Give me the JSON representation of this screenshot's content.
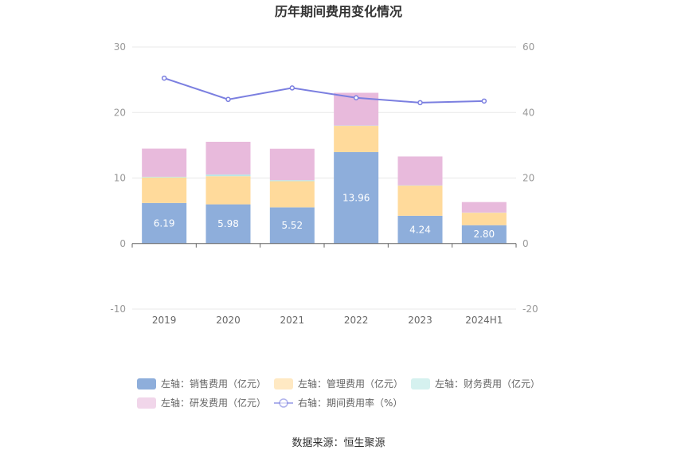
{
  "chart_data": {
    "type": "bar",
    "title": "历年期间费用变化情况",
    "categories": [
      "2019",
      "2020",
      "2021",
      "2022",
      "2023",
      "2024H1"
    ],
    "ylim_left": [
      -10,
      30
    ],
    "yticks_left": [
      -10,
      0,
      10,
      20,
      30
    ],
    "ylim_right": [
      -20,
      60
    ],
    "yticks_right": [
      -20,
      0,
      20,
      40,
      60
    ],
    "stacked": true,
    "series": [
      {
        "name": "左轴：销售费用（亿元）",
        "axis": "left",
        "kind": "bar",
        "color": "#8EAEDB",
        "values": [
          6.19,
          5.98,
          5.52,
          13.96,
          4.24,
          2.8
        ],
        "labels": [
          "6.19",
          "5.98",
          "5.52",
          "13.96",
          "4.24",
          "2.80"
        ]
      },
      {
        "name": "左轴：管理费用（亿元）",
        "axis": "left",
        "kind": "bar",
        "color": "#FFDA9B",
        "values": [
          3.9,
          4.3,
          4.0,
          4.0,
          4.6,
          1.9
        ]
      },
      {
        "name": "左轴：财务费用（亿元）",
        "axis": "left",
        "kind": "bar",
        "color": "#B9E7E5",
        "values": [
          0.1,
          0.25,
          0.15,
          0.05,
          0.05,
          0.03
        ]
      },
      {
        "name": "左轴：研发费用（亿元）",
        "axis": "left",
        "kind": "bar",
        "color": "#E8BADC",
        "values": [
          4.3,
          5.0,
          4.8,
          5.0,
          4.4,
          1.6
        ]
      },
      {
        "name": "右轴：期间费用率（%）",
        "axis": "right",
        "kind": "line",
        "color": "#7B7FE0",
        "values": [
          50.5,
          44.0,
          47.5,
          44.5,
          43.0,
          43.5
        ]
      }
    ],
    "source": "数据来源：恒生聚源"
  }
}
